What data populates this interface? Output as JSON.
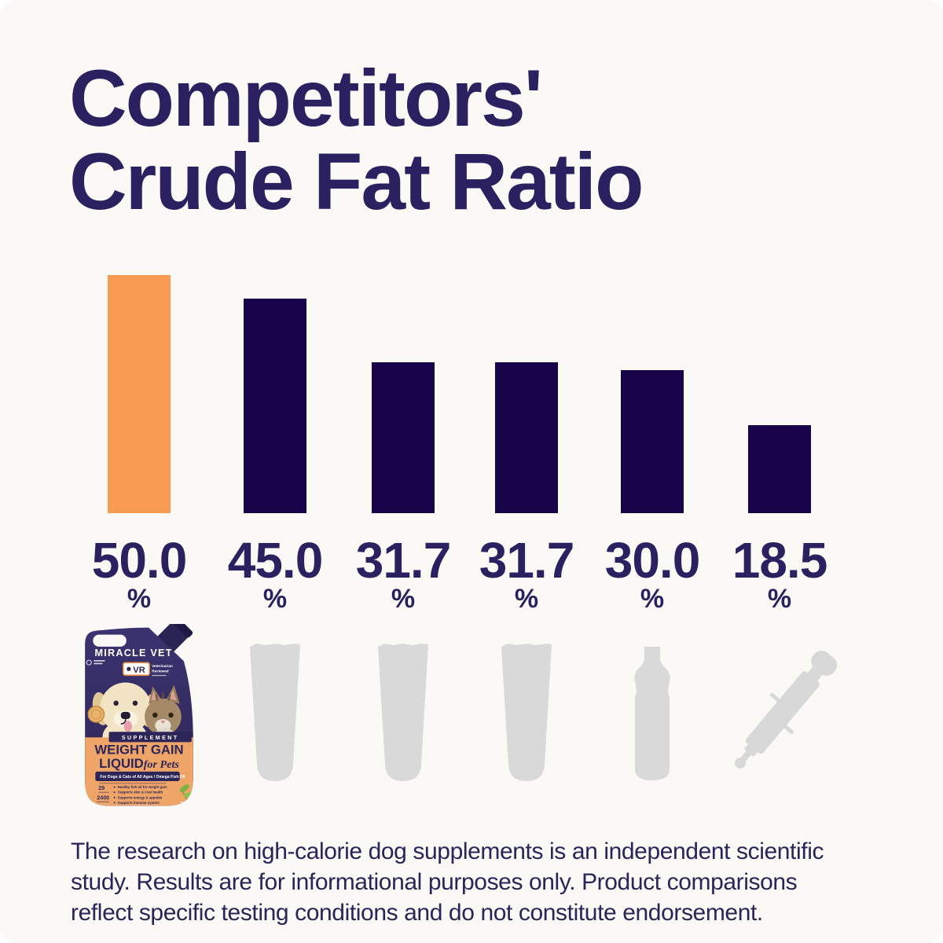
{
  "title": {
    "lines": [
      "Competitors'",
      "Crude Fat Ratio"
    ]
  },
  "chart_data": {
    "type": "bar",
    "title": "Competitors' Crude Fat Ratio",
    "unit": "%",
    "categories": [
      "miracle-vet-weight-gain-liquid-pouch",
      "competitor-tube",
      "competitor-tube",
      "competitor-tube",
      "competitor-bottle",
      "competitor-syringe"
    ],
    "values": [
      50.0,
      45.0,
      31.7,
      31.7,
      30.0,
      18.5
    ],
    "value_labels": [
      "50.0",
      "45.0",
      "31.7",
      "31.7",
      "30.0",
      "18.5"
    ],
    "bar_colors": [
      "#f99c51",
      "#180549",
      "#180549",
      "#180549",
      "#180549",
      "#180549"
    ],
    "highlight_index": 0,
    "highlight_color": "#f99c51",
    "base_color": "#180549",
    "ylim": [
      0,
      50
    ],
    "grid": "off",
    "legend": "none",
    "icons": [
      "miracle-vet-pouch",
      "tube-silhouette",
      "tube-silhouette",
      "tube-silhouette",
      "bottle-silhouette",
      "syringe-silhouette"
    ]
  },
  "product": {
    "brand": "MIRACLE VET™",
    "vr_badge": "VR",
    "vr_caption_1": "Veterinarian",
    "vr_caption_2": "Reviewed",
    "banner": "SUPPLEMENT",
    "title_line1": "WEIGHT GAIN",
    "title_line2": "LIQUID",
    "title_script": "for Pets",
    "strip": "For Dogs & Cats of All Ages / Omega Fish Oil",
    "bullets": [
      "Healthy fish oil for weight gain",
      "Supports skin & coat health",
      "Supports energy & appetite",
      "Supports immune system"
    ],
    "stat1": "29",
    "stat2": "2400"
  },
  "disclaimer": {
    "lines": [
      "The research on high-calorie dog supplements is an independent scientific",
      "study. Results are for informational purposes only. Product comparisons",
      "reflect specific testing conditions and do not constitute endorsement."
    ]
  }
}
